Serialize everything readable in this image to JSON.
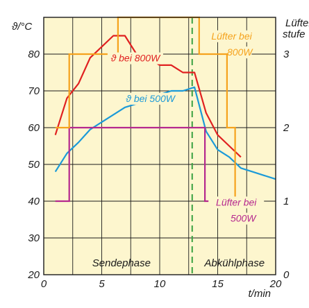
{
  "colors": {
    "background": "#fdf6ce",
    "grid": "#1a1a1a",
    "red": "#e02020",
    "blue": "#1b9ad8",
    "orange": "#f5a21c",
    "magenta": "#b5288e",
    "green_dash": "#3aa142",
    "phase_text": "#5a9e3c"
  },
  "chart_data": {
    "type": "line",
    "xlabel": "t/min",
    "ylabel_left": "ϑ/°C",
    "ylabel_right": "Lüfter-\nstufe",
    "xlim": [
      0,
      20
    ],
    "ylim_left": [
      20,
      90
    ],
    "ylim_right": [
      0,
      3.5
    ],
    "x_ticks": [
      "0",
      "5",
      "10",
      "15",
      "20"
    ],
    "y_left_ticks": [
      "20",
      "30",
      "40",
      "50",
      "60",
      "70",
      "80"
    ],
    "y_right_ticks": [
      "0",
      "1",
      "2",
      "3"
    ],
    "grid": true,
    "phase_divider_x": 12.8,
    "phase_labels": [
      "Sendephase",
      "Abkühlphase"
    ],
    "series": [
      {
        "name": "ϑ bei 800W",
        "axis": "left",
        "color_key": "red",
        "step": false,
        "x": [
          1,
          2,
          3,
          4,
          5,
          6,
          7,
          8,
          9,
          10,
          11,
          12,
          13,
          14,
          15,
          16,
          17
        ],
        "y": [
          58,
          68,
          72,
          79,
          82,
          85,
          85,
          80,
          79,
          77,
          77,
          75,
          75,
          64,
          58,
          55,
          52
        ]
      },
      {
        "name": "ϑ bei 500W",
        "axis": "left",
        "color_key": "blue",
        "step": false,
        "x": [
          1,
          2,
          3,
          4,
          5,
          6,
          7,
          8,
          9,
          10,
          11,
          12,
          13,
          14,
          15,
          16,
          17,
          18,
          19,
          20
        ],
        "y": [
          48,
          53,
          56,
          59.5,
          61.5,
          63.5,
          65.5,
          66.5,
          67.5,
          69,
          70,
          70,
          71,
          59,
          54,
          52,
          49,
          48,
          47,
          46
        ]
      },
      {
        "name": "Lüfter bei 800W",
        "axis": "right",
        "color_key": "orange",
        "step": true,
        "x": [
          1,
          2.2,
          2.2,
          6.4,
          6.4,
          13.4,
          13.4,
          15.8,
          15.8,
          16.5,
          16.5,
          17.4
        ],
        "y": [
          2,
          2,
          3,
          3,
          3.5,
          3.5,
          3,
          3,
          2,
          2,
          1,
          1
        ]
      },
      {
        "name": "Lüfter bei 500W",
        "axis": "right",
        "color_key": "magenta",
        "step": true,
        "x": [
          1,
          2.2,
          2.2,
          13.9,
          13.9,
          18.4
        ],
        "y": [
          1,
          1,
          2,
          2,
          1,
          1
        ]
      }
    ],
    "annotations": [
      {
        "text": "ϑ bei 800W",
        "color_key": "red",
        "x": 7.9,
        "y": 78
      },
      {
        "text": "ϑ bei 500W",
        "color_key": "blue",
        "x": 9.2,
        "y": 67
      },
      {
        "text": "Lüfter bei",
        "color_key": "orange",
        "x": 16.2,
        "y_right": 3.2
      },
      {
        "text": "800W",
        "color_key": "orange",
        "x": 16.9,
        "y_right": 2.98
      },
      {
        "text": "Lüfter bei",
        "color_key": "magenta",
        "x": 16.6,
        "y_right": 0.94
      },
      {
        "text": "500W",
        "color_key": "magenta",
        "x": 17.2,
        "y_right": 0.72
      }
    ]
  }
}
